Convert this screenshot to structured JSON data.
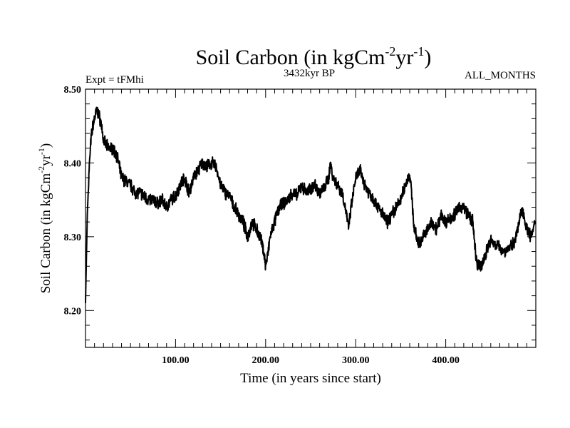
{
  "chart_data": {
    "type": "line",
    "title_main": "Soil Carbon (in kgCm",
    "title_sup1": "-2",
    "title_mid": "yr",
    "title_sup2": "-1",
    "title_end": ")",
    "subtitle_left": "Expt = tFMhi",
    "subtitle_center": "3432kyr BP",
    "subtitle_right": "ALL_MONTHS",
    "xlabel": "Time (in years since start)",
    "ylabel_main": "Soil Carbon (in kgCm",
    "ylabel_sup1": "-2",
    "ylabel_mid": "yr",
    "ylabel_sup2": "-1",
    "ylabel_end": ")",
    "xlim": [
      0,
      500
    ],
    "ylim": [
      8.15,
      8.5
    ],
    "x_ticks": [
      100,
      200,
      300,
      400
    ],
    "x_tick_labels": [
      "100.00",
      "200.00",
      "300.00",
      "400.00"
    ],
    "y_ticks": [
      8.2,
      8.3,
      8.4,
      8.5
    ],
    "y_tick_labels": [
      "8.20",
      "8.30",
      "8.40",
      "8.50"
    ],
    "series": [
      {
        "name": "Soil Carbon",
        "x": [
          0,
          2,
          4,
          6,
          8,
          10,
          12,
          14,
          16,
          18,
          20,
          25,
          30,
          35,
          40,
          45,
          50,
          55,
          60,
          65,
          70,
          75,
          80,
          85,
          90,
          95,
          100,
          105,
          110,
          115,
          120,
          125,
          130,
          135,
          140,
          145,
          150,
          155,
          160,
          165,
          170,
          175,
          180,
          185,
          190,
          195,
          198,
          200,
          203,
          205,
          210,
          215,
          220,
          225,
          230,
          235,
          240,
          245,
          250,
          255,
          260,
          265,
          270,
          272,
          275,
          280,
          285,
          290,
          292,
          295,
          300,
          305,
          310,
          315,
          320,
          325,
          330,
          335,
          340,
          345,
          350,
          355,
          358,
          360,
          362,
          365,
          370,
          375,
          380,
          385,
          390,
          395,
          400,
          405,
          410,
          415,
          420,
          425,
          430,
          432,
          435,
          440,
          445,
          450,
          455,
          460,
          465,
          470,
          475,
          480,
          485,
          490,
          495,
          500
        ],
        "values": [
          8.21,
          8.33,
          8.39,
          8.43,
          8.45,
          8.46,
          8.47,
          8.468,
          8.46,
          8.45,
          8.43,
          8.42,
          8.42,
          8.41,
          8.38,
          8.375,
          8.37,
          8.36,
          8.36,
          8.355,
          8.35,
          8.35,
          8.345,
          8.35,
          8.34,
          8.35,
          8.355,
          8.37,
          8.38,
          8.36,
          8.38,
          8.39,
          8.4,
          8.395,
          8.4,
          8.395,
          8.37,
          8.36,
          8.355,
          8.34,
          8.33,
          8.32,
          8.3,
          8.32,
          8.31,
          8.295,
          8.28,
          8.26,
          8.28,
          8.3,
          8.32,
          8.34,
          8.345,
          8.35,
          8.36,
          8.355,
          8.37,
          8.36,
          8.365,
          8.37,
          8.36,
          8.365,
          8.38,
          8.4,
          8.38,
          8.37,
          8.36,
          8.33,
          8.31,
          8.34,
          8.38,
          8.39,
          8.37,
          8.36,
          8.35,
          8.34,
          8.33,
          8.32,
          8.33,
          8.34,
          8.35,
          8.37,
          8.38,
          8.385,
          8.36,
          8.31,
          8.29,
          8.3,
          8.31,
          8.32,
          8.31,
          8.33,
          8.32,
          8.325,
          8.33,
          8.34,
          8.34,
          8.33,
          8.32,
          8.29,
          8.26,
          8.26,
          8.28,
          8.295,
          8.29,
          8.285,
          8.28,
          8.285,
          8.29,
          8.31,
          8.34,
          8.31,
          8.3,
          8.32
        ]
      }
    ]
  }
}
